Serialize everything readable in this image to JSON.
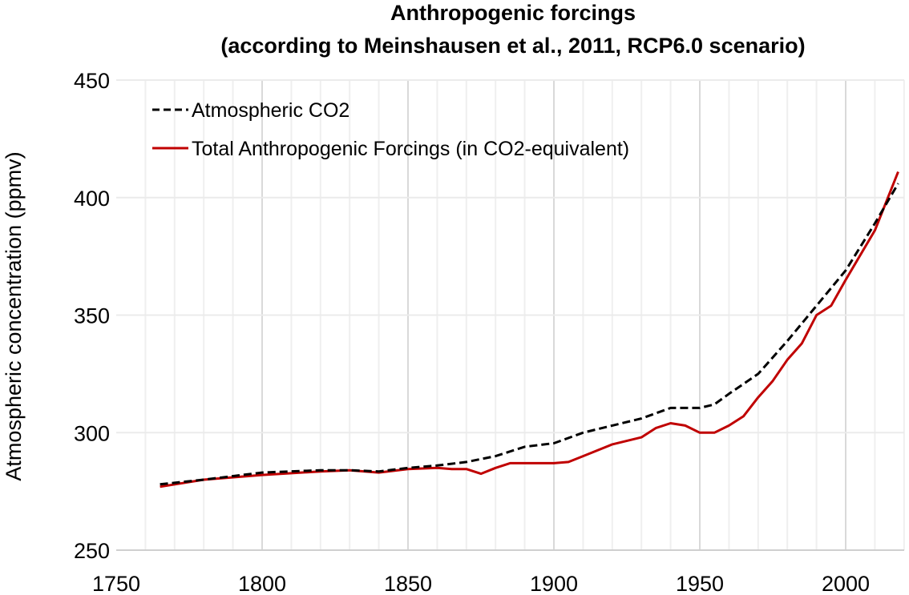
{
  "chart_data": {
    "type": "line",
    "title": "Anthropogenic forcings",
    "subtitle": "(according to Meinshausen et al., 2011,  RCP6.0 scenario)",
    "xlabel": "",
    "ylabel": "Atmospheric concentration (ppmv)",
    "xlim": [
      1750,
      2020
    ],
    "ylim": [
      250,
      450
    ],
    "xticks": [
      "1750",
      "1800",
      "1850",
      "1900",
      "1950",
      "2000"
    ],
    "yticks": [
      "250",
      "300",
      "350",
      "400",
      "450"
    ],
    "grid": true,
    "legend_position": "top-left",
    "series": [
      {
        "name": "Atmospheric CO2",
        "color": "#000000",
        "style": "dashed",
        "x": [
          1765,
          1780,
          1800,
          1820,
          1830,
          1840,
          1850,
          1860,
          1870,
          1880,
          1890,
          1900,
          1910,
          1920,
          1930,
          1940,
          1950,
          1955,
          1960,
          1970,
          1980,
          1990,
          2000,
          2010,
          2018
        ],
        "y": [
          278,
          280,
          283,
          284,
          284,
          283.5,
          285,
          286,
          287.5,
          290,
          294,
          295.5,
          300,
          303,
          306,
          310.5,
          310.5,
          312,
          316.5,
          325,
          339,
          354,
          369,
          389,
          406
        ]
      },
      {
        "name": "Total Anthropogenic Forcings (in CO2-equivalent)",
        "color": "#c00000",
        "style": "solid",
        "x": [
          1765,
          1780,
          1800,
          1820,
          1830,
          1840,
          1850,
          1860,
          1865,
          1870,
          1875,
          1880,
          1885,
          1890,
          1900,
          1905,
          1910,
          1920,
          1930,
          1935,
          1940,
          1945,
          1950,
          1955,
          1960,
          1965,
          1970,
          1975,
          1980,
          1985,
          1990,
          1995,
          2000,
          2010,
          2018
        ],
        "y": [
          277,
          280,
          282,
          283.5,
          284,
          283,
          284.5,
          285,
          284.5,
          284.5,
          282.5,
          285,
          287,
          287,
          287,
          287.5,
          290,
          295,
          298,
          302,
          304,
          303,
          300,
          300,
          303,
          307,
          315,
          322,
          331,
          338,
          350,
          354,
          365,
          386,
          411
        ]
      }
    ]
  }
}
